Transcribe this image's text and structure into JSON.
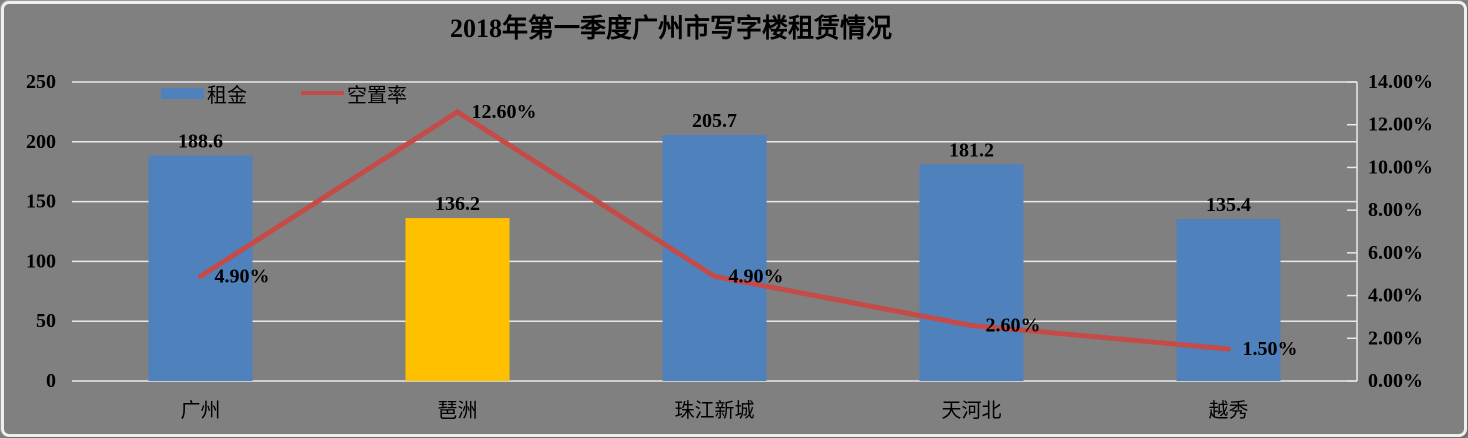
{
  "colors": {
    "background": "#808080",
    "gridline": "#E8E8E8",
    "bar_blue": "#4F81BD",
    "bar_yellow": "#FFC000",
    "line_red": "#C44B47",
    "text": "#000000",
    "frame_border": "#EFEFEF",
    "frame_shadow": "#6E6E6E"
  },
  "chart_data": {
    "type": "combo",
    "title": "2018年第一季度广州市写字楼租赁情况",
    "categories": [
      "广州",
      "琶洲",
      "珠江新城",
      "天河北",
      "越秀"
    ],
    "series": [
      {
        "name": "租金",
        "type": "bar",
        "axis": "left",
        "values": [
          188.6,
          136.2,
          205.7,
          181.2,
          135.4
        ],
        "labels": [
          "188.6",
          "136.2",
          "205.7",
          "181.2",
          "135.4"
        ],
        "point_colors": [
          "#4F81BD",
          "#FFC000",
          "#4F81BD",
          "#4F81BD",
          "#4F81BD"
        ],
        "default_color": "#4F81BD"
      },
      {
        "name": "空置率",
        "type": "line",
        "axis": "right",
        "values": [
          4.9,
          12.6,
          4.9,
          2.6,
          1.5
        ],
        "labels": [
          "4.90%",
          "12.60%",
          "4.90%",
          "2.60%",
          "1.50%"
        ],
        "color": "#C44B47"
      }
    ],
    "left_axis": {
      "min": 0,
      "max": 250,
      "step": 50,
      "tick_values": [
        0,
        50,
        100,
        150,
        200,
        250
      ],
      "tick_labels": [
        "0",
        "50",
        "100",
        "150",
        "200",
        "250"
      ]
    },
    "right_axis": {
      "min": 0,
      "max": 14,
      "step": 2,
      "tick_values": [
        0,
        2,
        4,
        6,
        8,
        10,
        12,
        14
      ],
      "tick_labels": [
        "0.00%",
        "2.00%",
        "4.00%",
        "6.00%",
        "8.00%",
        "10.00%",
        "12.00%",
        "14.00%"
      ]
    },
    "grid": true,
    "legend_position": "top-left-inside",
    "legend": [
      {
        "label": "租金",
        "swatch": "bar",
        "color": "#4F81BD"
      },
      {
        "label": "空置率",
        "swatch": "line",
        "color": "#C44B47"
      }
    ]
  }
}
